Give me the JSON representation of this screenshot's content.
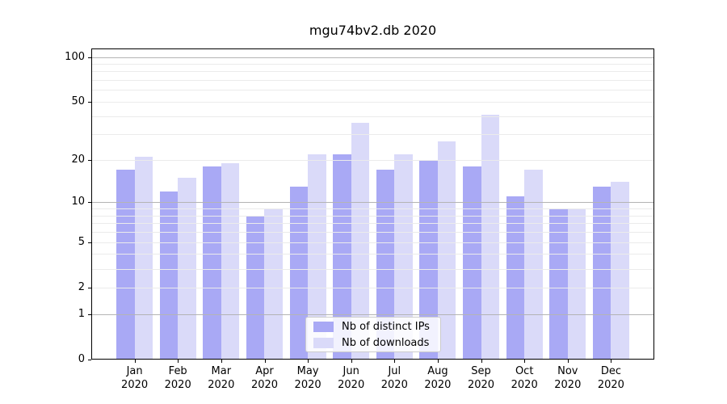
{
  "title": "mgu74bv2.db 2020",
  "chart_data": {
    "type": "bar",
    "title": "mgu74bv2.db 2020",
    "categories": [
      "Jan",
      "Feb",
      "Mar",
      "Apr",
      "May",
      "Jun",
      "Jul",
      "Aug",
      "Sep",
      "Oct",
      "Nov",
      "Dec"
    ],
    "year": "2020",
    "series": [
      {
        "name": "Nb of distinct IPs",
        "color": "#a9a9f5",
        "values": [
          17,
          12,
          18,
          8,
          13,
          22,
          17,
          20,
          18,
          11,
          9,
          13
        ]
      },
      {
        "name": "Nb of downloads",
        "color": "#dadaf9",
        "values": [
          21,
          15,
          19,
          9,
          22,
          36,
          22,
          27,
          41,
          17,
          9,
          14
        ]
      }
    ],
    "yscale": "log1p",
    "ylim": [
      0,
      114
    ],
    "xlim": [
      -1,
      12
    ],
    "y_ticks": [
      100,
      50,
      20,
      10,
      5,
      2,
      1,
      0
    ],
    "y_major_gridlines": [
      100,
      10,
      1
    ],
    "y_minor_gridlines": [
      90,
      80,
      70,
      60,
      50,
      40,
      30,
      20,
      9,
      8,
      7,
      6,
      5,
      4,
      3,
      2
    ],
    "grid_above_bars": true,
    "legend_position": "lower center",
    "colors": {
      "background": "#ffffff",
      "axis": "#000000",
      "gridline_major": "#b4b4b4",
      "gridline_minor": "#ebebeb"
    }
  },
  "legend": {
    "items": [
      {
        "label": "Nb of distinct IPs"
      },
      {
        "label": "Nb of downloads"
      }
    ]
  }
}
